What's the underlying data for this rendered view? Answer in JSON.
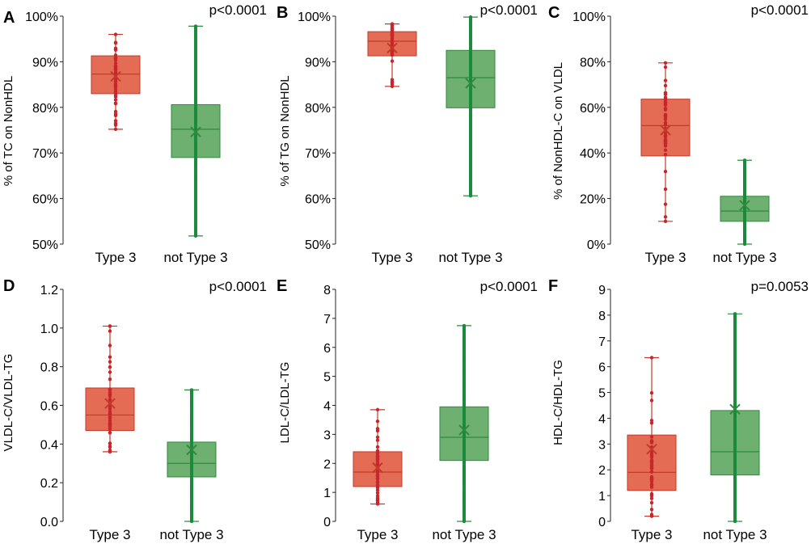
{
  "colors": {
    "type3_fill": "#e46c55",
    "type3_line": "#c13a2a",
    "type3_dot": "#c8262a",
    "other_fill": "#6db06f",
    "other_line": "#2f8a3e",
    "other_dot": "#1a8a3c"
  },
  "chart_data": [
    {
      "panel": "A",
      "type": "box",
      "p_value": "p<0.0001",
      "ylabel": "% of TC on NonHDL",
      "ylim": [
        50,
        100
      ],
      "yticks": [
        50,
        60,
        70,
        80,
        90,
        100
      ],
      "ytick_labels": [
        "50%",
        "60%",
        "70%",
        "80%",
        "90%",
        "100%"
      ],
      "categories": [
        "Type 3",
        "not Type 3"
      ],
      "series": [
        {
          "name": "Type 3",
          "min": 75.2,
          "q1": 83.0,
          "median": 87.3,
          "q3": 91.3,
          "max": 96.0,
          "mean": 86.8,
          "dot_density": "sparse"
        },
        {
          "name": "not Type 3",
          "min": 51.8,
          "q1": 69.0,
          "median": 75.2,
          "q3": 80.6,
          "max": 97.8,
          "mean": 74.6,
          "dot_density": "dense"
        }
      ]
    },
    {
      "panel": "B",
      "type": "box",
      "p_value": "p<0.0001",
      "ylabel": "% of TG on NonHDL",
      "ylim": [
        50,
        100
      ],
      "yticks": [
        50,
        60,
        70,
        80,
        90,
        100
      ],
      "ytick_labels": [
        "50%",
        "60%",
        "70%",
        "80%",
        "90%",
        "100%"
      ],
      "categories": [
        "Type 3",
        "not Type 3"
      ],
      "series": [
        {
          "name": "Type 3",
          "min": 84.6,
          "q1": 91.3,
          "median": 94.5,
          "q3": 96.6,
          "max": 98.3,
          "mean": 93.0,
          "dot_density": "sparse"
        },
        {
          "name": "not Type 3",
          "min": 60.6,
          "q1": 79.9,
          "median": 86.5,
          "q3": 92.5,
          "max": 99.8,
          "mean": 85.3,
          "dot_density": "dense"
        }
      ]
    },
    {
      "panel": "C",
      "type": "box",
      "p_value": "p<0.0001",
      "ylabel": "% of NonHDL-C on VLDL",
      "ylim": [
        0,
        100
      ],
      "yticks": [
        0,
        20,
        40,
        60,
        80,
        100
      ],
      "ytick_labels": [
        "0%",
        "20%",
        "40%",
        "60%",
        "80%",
        "100%"
      ],
      "categories": [
        "Type 3",
        "not Type 3"
      ],
      "series": [
        {
          "name": "Type 3",
          "min": 10,
          "q1": 38.7,
          "median": 52.0,
          "q3": 63.6,
          "max": 79.5,
          "mean": 50.0,
          "dot_density": "sparse"
        },
        {
          "name": "not Type 3",
          "min": 0,
          "q1": 10.0,
          "median": 14.5,
          "q3": 21.0,
          "max": 36.8,
          "mean": 17.0,
          "dot_density": "dense"
        }
      ]
    },
    {
      "panel": "D",
      "type": "box",
      "p_value": "p<0.0001",
      "ylabel": "VLDL-C/VLDL-TG",
      "ylim": [
        0,
        1.2
      ],
      "yticks": [
        0,
        0.2,
        0.4,
        0.6,
        0.8,
        1.0,
        1.2
      ],
      "ytick_labels": [
        "0.0",
        "0.2",
        "0.4",
        "0.6",
        "0.8",
        "1.0",
        "1.2"
      ],
      "categories": [
        "Type 3",
        "not Type 3"
      ],
      "series": [
        {
          "name": "Type 3",
          "min": 0.36,
          "q1": 0.47,
          "median": 0.55,
          "q3": 0.69,
          "max": 1.01,
          "mean": 0.61,
          "dot_density": "sparse"
        },
        {
          "name": "not Type 3",
          "min": 0.0,
          "q1": 0.23,
          "median": 0.3,
          "q3": 0.41,
          "max": 0.68,
          "mean": 0.37,
          "dot_density": "dense"
        }
      ]
    },
    {
      "panel": "E",
      "type": "box",
      "p_value": "p<0.0001",
      "ylabel": "LDL-C/LDL-TG",
      "ylim": [
        0,
        8
      ],
      "yticks": [
        0,
        1,
        2,
        3,
        4,
        5,
        6,
        7,
        8
      ],
      "ytick_labels": [
        "0",
        "1",
        "2",
        "3",
        "4",
        "5",
        "6",
        "7",
        "8"
      ],
      "categories": [
        "Type 3",
        "not Type 3"
      ],
      "series": [
        {
          "name": "Type 3",
          "min": 0.6,
          "q1": 1.2,
          "median": 1.7,
          "q3": 2.4,
          "max": 3.85,
          "mean": 1.85,
          "dot_density": "sparse"
        },
        {
          "name": "not Type 3",
          "min": 0.0,
          "q1": 2.1,
          "median": 2.9,
          "q3": 3.95,
          "max": 6.75,
          "mean": 3.15,
          "dot_density": "dense"
        }
      ]
    },
    {
      "panel": "F",
      "type": "box",
      "p_value": "p=0.0053",
      "ylabel": "HDL-C/HDL-TG",
      "ylim": [
        0,
        9
      ],
      "yticks": [
        0,
        1,
        2,
        3,
        4,
        5,
        6,
        7,
        8,
        9
      ],
      "ytick_labels": [
        "0",
        "1",
        "2",
        "3",
        "4",
        "5",
        "6",
        "7",
        "8",
        "9"
      ],
      "categories": [
        "Type 3",
        "not Type 3"
      ],
      "series": [
        {
          "name": "Type 3",
          "min": 0.2,
          "q1": 1.2,
          "median": 1.9,
          "q3": 3.35,
          "max": 6.35,
          "mean": 2.8,
          "dot_density": "sparse"
        },
        {
          "name": "not Type 3",
          "min": 0.0,
          "q1": 1.8,
          "median": 2.7,
          "q3": 4.3,
          "max": 8.05,
          "mean": 4.35,
          "dot_density": "dense"
        }
      ]
    }
  ]
}
